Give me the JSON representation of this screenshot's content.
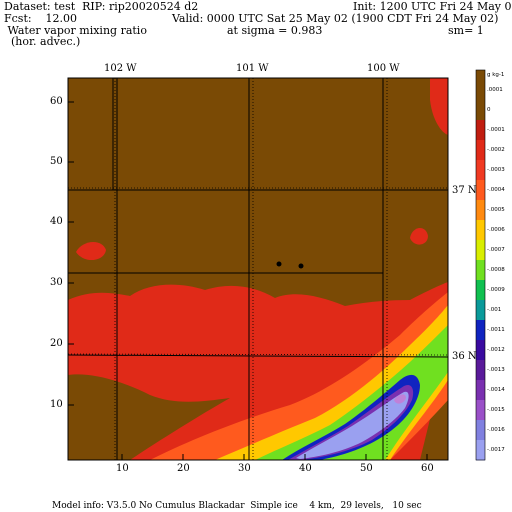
{
  "header": {
    "line1_left": "Dataset: test  RIP: rip20020524 d2",
    "line1_right": "Init: 1200 UTC Fri 24 May 02",
    "line2_left": "Fcst:    12.00",
    "line2_right": "Valid: 0000 UTC Sat 25 May 02 (1900 CDT Fri 24 May 02)",
    "line3_left": " Water vapor mixing ratio",
    "line3_mid": "at sigma = 0.983",
    "line3_right": "sm= 1",
    "line4_left": "  (hor. advec.)"
  },
  "footer": "Model info: V3.5.0 No Cumulus Blackadar  Simple ice    4 km,  29 levels,   10 sec",
  "map": {
    "longitude_labels": [
      "102 W",
      "101 W",
      "100 W"
    ],
    "latitude_labels": [
      "37 N",
      "36 N"
    ],
    "y_ticks": [
      "60",
      "50",
      "40",
      "30",
      "20",
      "10"
    ],
    "x_ticks": [
      "10",
      "20",
      "30",
      "40",
      "50",
      "60"
    ]
  },
  "legend": {
    "units": "g kg-1",
    "entries": [
      {
        "label": ".0001",
        "color": "#7a4a05"
      },
      {
        "label": "0",
        "color": "#7a4a05"
      },
      {
        "label": "-.0001",
        "color": "#c01d10"
      },
      {
        "label": "-.0002",
        "color": "#e02a18"
      },
      {
        "label": "-.0003",
        "color": "#f03a22"
      },
      {
        "label": "-.0004",
        "color": "#ff5a1e"
      },
      {
        "label": "-.0005",
        "color": "#ff8a10"
      },
      {
        "label": "-.0006",
        "color": "#ffc800"
      },
      {
        "label": "-.0007",
        "color": "#d8ee00"
      },
      {
        "label": "-.0008",
        "color": "#70e020"
      },
      {
        "label": "-.0009",
        "color": "#10c050"
      },
      {
        "label": "-.001",
        "color": "#0a9a9a"
      },
      {
        "label": "-.0011",
        "color": "#1024c0"
      },
      {
        "label": "-.0012",
        "color": "#3a0aa0"
      },
      {
        "label": "-.0013",
        "color": "#5a1a9a"
      },
      {
        "label": "-.0014",
        "color": "#7a30b0"
      },
      {
        "label": "-.0015",
        "color": "#9a50c8"
      },
      {
        "label": "-.0016",
        "color": "#8080e0"
      },
      {
        "label": "-.0017",
        "color": "#9aa0f0"
      }
    ]
  },
  "colors": {
    "background_field": "#7a4a05",
    "red_region": "#e02a18",
    "orange_region": "#ff5a1e",
    "yellow_region": "#ffc800",
    "green_region": "#70e020",
    "blue_region": "#1024c0",
    "purple_region": "#7a30b0",
    "lavender_region": "#9aa0f0"
  }
}
